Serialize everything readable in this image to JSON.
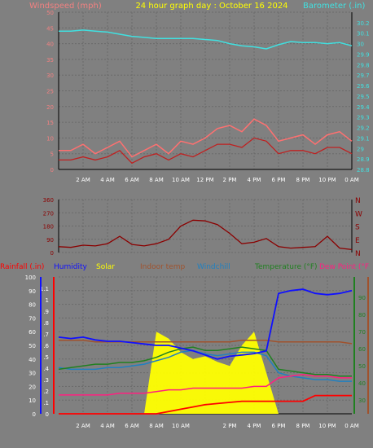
{
  "header": {
    "left_title": "Windspeed (mph)",
    "center_title": "24 hour graph day : October 16 2024",
    "right_title": "Barometer (.in)"
  },
  "colors": {
    "background": "#808080",
    "grid": "#6a6a6a",
    "windspeed_label": "#f08080",
    "title": "#ffff00",
    "barometer": "#40e0e0",
    "gust": "#ff7070",
    "avg_wind": "#c02020",
    "direction": "#8b0000",
    "rainfall": "#ff0000",
    "humidity": "#1010ff",
    "solar": "#ffff00",
    "indoor": "#a0522d",
    "windchill": "#2080c0",
    "temperature": "#208020",
    "dewpoint": "#ff2080"
  },
  "chart_data": [
    {
      "type": "line",
      "title": "24 hour graph day : October 16 2024",
      "x_ticks": [
        "2 AM",
        "4 AM",
        "6 AM",
        "8 AM",
        "10 AM",
        "12 PM",
        "2 PM",
        "4 PM",
        "6 PM",
        "8 PM",
        "10 PM",
        "0 AM"
      ],
      "left_axis": {
        "label": "Windspeed (mph)",
        "ylim": [
          0,
          50
        ],
        "ticks": [
          "0",
          "5",
          "10",
          "15",
          "20",
          "25",
          "30",
          "35",
          "40",
          "45",
          "50"
        ]
      },
      "right_axis": {
        "label": "Barometer (.in)",
        "ylim": [
          28.8,
          30.3
        ],
        "ticks": [
          "28.8",
          "28.9",
          "29",
          "29.1",
          "29.2",
          "29.3",
          "29.4",
          "29.5",
          "29.6",
          "29.7",
          "29.8",
          "29.9",
          "30",
          "30.1",
          "30.2"
        ]
      },
      "x_hours": [
        0,
        1,
        2,
        3,
        4,
        5,
        6,
        7,
        8,
        9,
        10,
        11,
        12,
        13,
        14,
        15,
        16,
        17,
        18,
        19,
        20,
        21,
        22,
        23,
        24
      ],
      "series": [
        {
          "key": "barometer",
          "axis": "right",
          "values": [
            30.12,
            30.12,
            30.13,
            30.12,
            30.11,
            30.09,
            30.07,
            30.06,
            30.05,
            30.05,
            30.05,
            30.05,
            30.04,
            30.03,
            30.0,
            29.98,
            29.97,
            29.95,
            29.99,
            30.02,
            30.01,
            30.01,
            30.0,
            30.01,
            29.98
          ]
        },
        {
          "key": "gust",
          "axis": "left",
          "values": [
            6,
            6,
            8,
            5,
            7,
            9,
            4,
            6,
            8,
            5,
            9,
            8,
            10,
            13,
            14,
            12,
            16,
            14,
            9,
            10,
            11,
            8,
            11,
            12,
            9
          ]
        },
        {
          "key": "avg_wind",
          "axis": "left",
          "values": [
            3,
            3,
            4,
            3,
            4,
            6,
            2,
            4,
            5,
            3,
            5,
            4,
            6,
            8,
            8,
            7,
            10,
            9,
            5,
            6,
            6,
            5,
            7,
            7,
            5
          ]
        }
      ]
    },
    {
      "type": "line",
      "left_axis": {
        "ylim": [
          0,
          360
        ],
        "ticks": [
          "0",
          "90",
          "180",
          "270",
          "360"
        ]
      },
      "right_axis": {
        "ticks": [
          "N",
          "W",
          "S",
          "E",
          "N"
        ]
      },
      "x_hours": [
        0,
        1,
        2,
        3,
        4,
        5,
        6,
        7,
        8,
        9,
        10,
        11,
        12,
        13,
        14,
        15,
        16,
        17,
        18,
        19,
        20,
        21,
        22,
        23,
        24
      ],
      "series": [
        {
          "key": "direction",
          "values": [
            40,
            35,
            50,
            45,
            60,
            110,
            55,
            45,
            60,
            90,
            180,
            220,
            215,
            190,
            130,
            60,
            70,
            95,
            40,
            30,
            35,
            40,
            110,
            30,
            20
          ]
        }
      ]
    },
    {
      "type": "line",
      "legend": [
        "Rainfall (.in)",
        "Humidity",
        "Solar",
        "Indoor temp",
        "Windchill",
        "Temperature (°F)",
        "Dew Point (°F"
      ],
      "x_ticks": [
        "2 AM",
        "4 AM",
        "6 AM",
        "8 AM",
        "10 AM",
        "2 PM",
        "4 PM",
        "6 PM",
        "8 PM",
        "10 PM",
        "0 AM"
      ],
      "left_axis_rain": {
        "ylim": [
          0,
          1.2
        ],
        "ticks": [
          "0",
          ".1",
          ".2",
          ".3",
          ".4",
          ".5",
          ".6",
          ".7",
          ".8",
          ".9",
          "1",
          "1.1"
        ]
      },
      "left_axis_pct": {
        "ylim": [
          0,
          100
        ],
        "ticks": [
          "0",
          "10",
          "20",
          "30",
          "40",
          "50",
          "60",
          "70",
          "80",
          "90",
          "100"
        ]
      },
      "right_axis_temp": {
        "ylim": [
          22,
          102
        ],
        "ticks": [
          "30",
          "40",
          "50",
          "60",
          "70",
          "80",
          "90"
        ]
      },
      "x_hours": [
        0,
        1,
        2,
        3,
        4,
        5,
        6,
        7,
        8,
        9,
        10,
        11,
        12,
        13,
        14,
        15,
        16,
        17,
        18,
        19,
        20,
        21,
        22,
        23,
        24
      ],
      "series": [
        {
          "key": "humidity",
          "axis": "pct",
          "values": [
            56,
            55,
            56,
            54,
            53,
            53,
            52,
            51,
            50,
            50,
            48,
            46,
            43,
            40,
            42,
            43,
            44,
            46,
            88,
            90,
            91,
            88,
            87,
            88,
            90
          ]
        },
        {
          "key": "indoor",
          "axis": "temp",
          "values": [
            65,
            65,
            65,
            64,
            64,
            64,
            64,
            64,
            64,
            64,
            64,
            64,
            64,
            64,
            64,
            65,
            65,
            65,
            64,
            64,
            64,
            64,
            64,
            64,
            63
          ]
        },
        {
          "key": "windchill",
          "axis": "temp",
          "values": [
            49,
            48,
            48,
            48,
            49,
            49,
            50,
            51,
            53,
            55,
            58,
            59,
            57,
            56,
            57,
            58,
            58,
            56,
            46,
            44,
            43,
            42,
            42,
            41,
            41
          ]
        },
        {
          "key": "temperature",
          "axis": "temp",
          "values": [
            48,
            49,
            50,
            51,
            51,
            52,
            52,
            53,
            55,
            58,
            60,
            61,
            59,
            59,
            60,
            61,
            60,
            59,
            48,
            47,
            46,
            45,
            45,
            44,
            44
          ]
        },
        {
          "key": "dewpoint",
          "axis": "temp",
          "values": [
            33,
            33,
            33,
            33,
            33,
            34,
            34,
            34,
            35,
            36,
            36,
            37,
            37,
            37,
            37,
            37,
            38,
            38,
            43,
            44,
            45,
            44,
            44,
            43,
            43
          ]
        },
        {
          "key": "rainfall",
          "axis": "rain",
          "values": [
            0,
            0,
            0,
            0,
            0,
            0,
            0,
            0,
            0,
            0.02,
            0.04,
            0.06,
            0.08,
            0.09,
            0.1,
            0.11,
            0.11,
            0.11,
            0.11,
            0.11,
            0.11,
            0.16,
            0.16,
            0.16,
            0.16
          ]
        },
        {
          "key": "solar",
          "axis": "pct",
          "values": [
            0,
            0,
            0,
            0,
            0,
            0,
            0,
            0,
            60,
            55,
            45,
            40,
            42,
            38,
            35,
            50,
            60,
            30,
            0,
            0,
            0,
            0,
            0,
            0,
            0
          ]
        }
      ]
    }
  ]
}
